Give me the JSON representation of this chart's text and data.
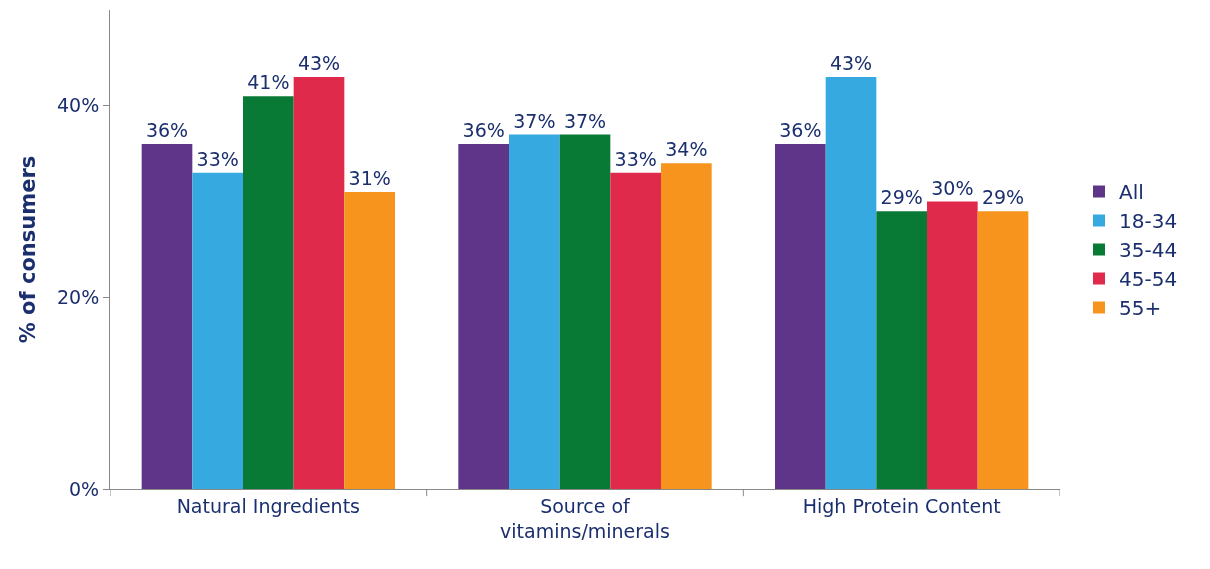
{
  "chart_data": {
    "type": "bar",
    "ylabel": "% of consumers",
    "categories": [
      "Natural Ingredients",
      "Source of vitamins/minerals",
      "High Protein Content"
    ],
    "series": [
      {
        "name": "All",
        "color": "#5e3589",
        "values": [
          36,
          36,
          36
        ],
        "value_labels": [
          "36%",
          "36%",
          "36%"
        ]
      },
      {
        "name": "18-34",
        "color": "#36a9e1",
        "values": [
          33,
          37,
          43
        ],
        "value_labels": [
          "33%",
          "37%",
          "43%"
        ]
      },
      {
        "name": "35-44",
        "color": "#087a36",
        "values": [
          41,
          37,
          29
        ],
        "value_labels": [
          "41%",
          "37%",
          "29%"
        ]
      },
      {
        "name": "45-54",
        "color": "#e02a4b",
        "values": [
          43,
          33,
          30
        ],
        "value_labels": [
          "43%",
          "33%",
          "30%"
        ]
      },
      {
        "name": "55+",
        "color": "#f7941e",
        "values": [
          31,
          34,
          29
        ],
        "value_labels": [
          "31%",
          "34%",
          "29%"
        ]
      }
    ],
    "ylim": [
      0,
      50
    ],
    "yticks": [
      {
        "value": 0,
        "label": "0%"
      },
      {
        "value": 20,
        "label": "20%"
      },
      {
        "value": 40,
        "label": "40%"
      }
    ],
    "legend": "right"
  }
}
